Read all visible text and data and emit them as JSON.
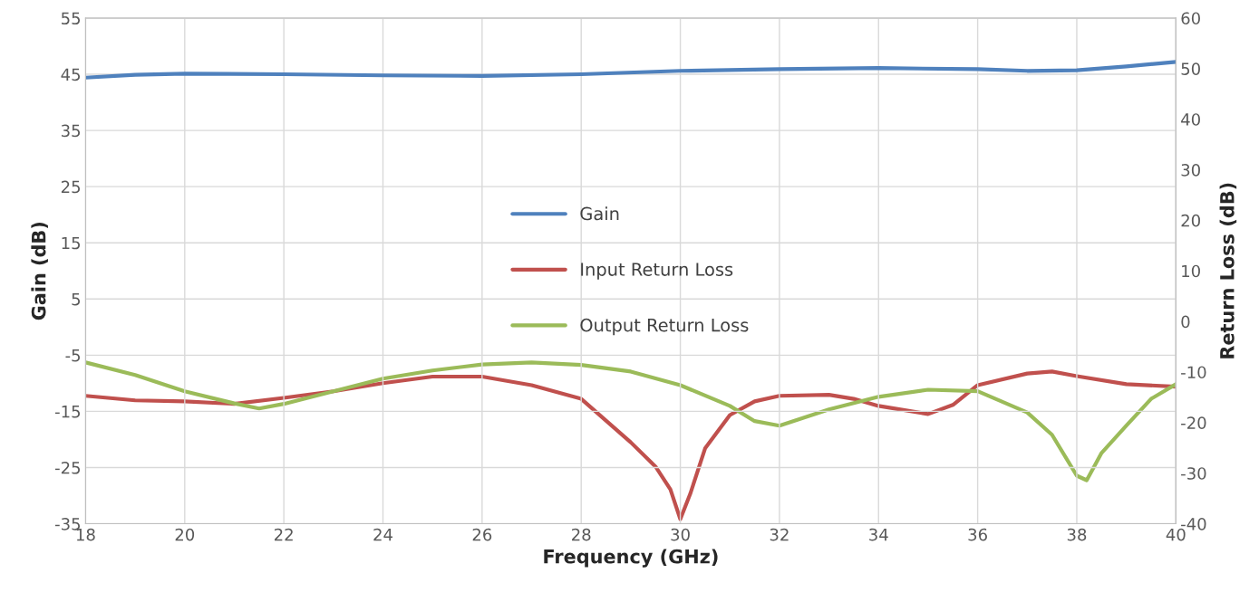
{
  "chart_data": {
    "type": "line",
    "xlabel": "Frequency (GHz)",
    "ylabel": "Gain (dB)",
    "y2label": "Return Loss (dB)",
    "xlim": [
      18,
      40
    ],
    "xticks": [
      18,
      20,
      22,
      24,
      26,
      28,
      30,
      32,
      34,
      36,
      38,
      40
    ],
    "ylim": [
      -35,
      55
    ],
    "yticks": [
      -35,
      -25,
      -15,
      -5,
      5,
      15,
      25,
      35,
      45,
      55
    ],
    "y2lim": [
      -40,
      60
    ],
    "y2ticks": [
      -40,
      -30,
      -20,
      -10,
      0,
      10,
      20,
      30,
      40,
      50,
      60
    ],
    "grid": true,
    "legend": "center",
    "marker": "none",
    "line_style": "solid",
    "series": [
      {
        "name": "Gain",
        "color": "#4f81bd",
        "x": [
          18,
          19,
          20,
          22,
          24,
          26,
          28,
          30,
          32,
          34,
          36,
          37,
          38,
          39,
          40
        ],
        "values": [
          44.4,
          44.9,
          45.1,
          45.0,
          44.8,
          44.7,
          45.0,
          45.6,
          45.9,
          46.1,
          45.9,
          45.6,
          45.7,
          46.4,
          47.2
        ]
      },
      {
        "name": "Input Return Loss",
        "color": "#c0504d",
        "axis": "y2",
        "x": [
          18,
          19,
          20,
          21,
          22,
          23,
          24,
          25,
          26,
          27,
          28,
          29,
          29.5,
          29.8,
          30,
          30.2,
          30.5,
          31,
          31.5,
          32,
          33,
          33.5,
          34,
          35,
          35.5,
          36,
          37,
          37.5,
          38,
          39,
          40
        ],
        "values": [
          -14.7,
          -15.6,
          -15.8,
          -16.3,
          -15.1,
          -13.8,
          -12.2,
          -10.9,
          -10.9,
          -12.6,
          -15.3,
          -23.9,
          -28.7,
          -33.2,
          -39.1,
          -34.1,
          -25.1,
          -18.5,
          -15.8,
          -14.7,
          -14.5,
          -15.3,
          -16.7,
          -18.3,
          -16.5,
          -12.6,
          -10.3,
          -9.9,
          -10.8,
          -12.4,
          -12.9
        ]
      },
      {
        "name": "Output Return Loss",
        "color": "#9bbb59",
        "axis": "y2",
        "x": [
          18,
          19,
          20,
          21,
          21.5,
          22,
          23,
          24,
          25,
          26,
          27,
          28,
          29,
          30,
          31,
          31.5,
          32,
          33,
          34,
          35,
          36,
          37,
          37.5,
          38,
          38.2,
          38.5,
          39,
          39.5,
          40
        ],
        "values": [
          -8.1,
          -10.6,
          -13.8,
          -16.2,
          -17.2,
          -16.3,
          -13.8,
          -11.3,
          -9.7,
          -8.5,
          -8.1,
          -8.6,
          -9.9,
          -12.6,
          -16.7,
          -19.7,
          -20.6,
          -17.4,
          -14.9,
          -13.5,
          -13.8,
          -18.0,
          -22.4,
          -30.5,
          -31.4,
          -26.0,
          -20.6,
          -15.3,
          -12.4
        ]
      }
    ]
  }
}
